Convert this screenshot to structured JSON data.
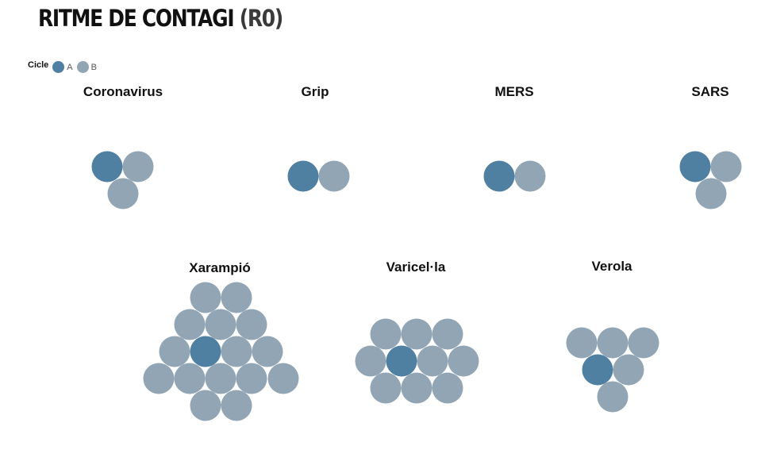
{
  "header": {
    "title": "RITME DE CONTAGI",
    "title_suffix": "(R0)"
  },
  "legend": {
    "title": "Cicle",
    "items": [
      {
        "label": "A"
      },
      {
        "label": "B"
      }
    ]
  },
  "colors": {
    "A": "#4f7fa1",
    "B": "#92a5b4"
  },
  "chart_data": {
    "type": "packed-circles",
    "title": "RITME DE CONTAGI (R0)",
    "legend_title": "Cicle",
    "series": [
      {
        "name": "A"
      },
      {
        "name": "B"
      }
    ],
    "categories": [
      {
        "name": "Coronavirus",
        "A": 1,
        "B": 2
      },
      {
        "name": "Grip",
        "A": 1,
        "B": 1
      },
      {
        "name": "MERS",
        "A": 1,
        "B": 1
      },
      {
        "name": "SARS",
        "A": 1,
        "B": 2
      },
      {
        "name": "Xarampió",
        "A": 1,
        "B": 15
      },
      {
        "name": "Varicel·la",
        "A": 1,
        "B": 9
      },
      {
        "name": "Verola",
        "A": 1,
        "B": 5
      }
    ]
  }
}
